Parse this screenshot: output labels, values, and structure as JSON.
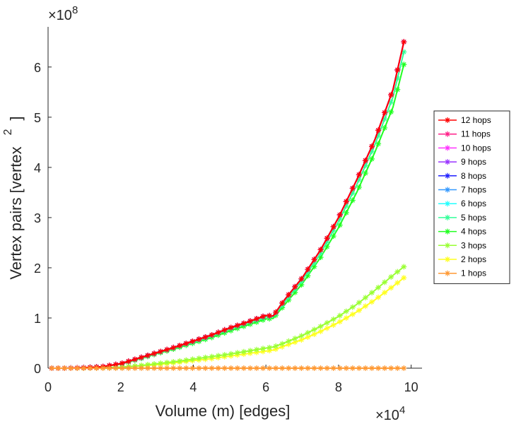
{
  "chart_data": {
    "type": "line",
    "title": "",
    "xlabel": "Volume (m) [edges]",
    "ylabel_main": "Vertex pairs [vertex",
    "ylabel_super": "2",
    "ylabel_close": "]",
    "x_exponent_label": "×10",
    "x_exponent_power": "4",
    "y_exponent_label": "×10",
    "y_exponent_power": "8",
    "xlim": [
      0,
      10.3
    ],
    "ylim": [
      0,
      6.8
    ],
    "xticks": [
      0,
      2,
      4,
      6,
      8,
      10
    ],
    "xtick_labels": [
      "0",
      "2",
      "4",
      "6",
      "8",
      "10"
    ],
    "yticks": [
      0,
      1,
      2,
      3,
      4,
      5,
      6
    ],
    "ytick_labels": [
      "0",
      "1",
      "2",
      "3",
      "4",
      "5",
      "6"
    ],
    "x_unit_scale": "10^4 edges",
    "y_unit_scale": "10^8 vertex^2",
    "grid": false,
    "legend_position": "right",
    "x": [
      0.1,
      0.5,
      1.0,
      1.5,
      2.0,
      2.5,
      3.0,
      3.5,
      4.0,
      4.5,
      5.0,
      5.5,
      6.0,
      6.2,
      6.5,
      7.0,
      7.5,
      8.0,
      8.5,
      9.0,
      9.5,
      9.8
    ],
    "series": [
      {
        "name": "12 hops",
        "color": "#ff0000",
        "values": [
          0,
          0,
          0.01,
          0.03,
          0.09,
          0.2,
          0.31,
          0.42,
          0.54,
          0.66,
          0.8,
          0.92,
          1.05,
          1.04,
          1.35,
          1.8,
          2.35,
          3.0,
          3.75,
          4.55,
          5.55,
          6.5
        ]
      },
      {
        "name": "11 hops",
        "color": "#ff1f88",
        "values": [
          0,
          0,
          0.01,
          0.03,
          0.09,
          0.2,
          0.31,
          0.42,
          0.54,
          0.66,
          0.8,
          0.92,
          1.05,
          1.04,
          1.35,
          1.8,
          2.35,
          3.0,
          3.75,
          4.55,
          5.55,
          6.5
        ]
      },
      {
        "name": "10 hops",
        "color": "#ff33ff",
        "values": [
          0,
          0,
          0.01,
          0.03,
          0.09,
          0.2,
          0.31,
          0.42,
          0.54,
          0.66,
          0.8,
          0.92,
          1.05,
          1.04,
          1.35,
          1.8,
          2.35,
          3.0,
          3.75,
          4.55,
          5.55,
          6.5
        ]
      },
      {
        "name": "9 hops",
        "color": "#9933ff",
        "values": [
          0,
          0,
          0.01,
          0.03,
          0.09,
          0.2,
          0.31,
          0.42,
          0.54,
          0.66,
          0.8,
          0.92,
          1.05,
          1.04,
          1.35,
          1.8,
          2.35,
          3.0,
          3.75,
          4.55,
          5.55,
          6.5
        ]
      },
      {
        "name": "8 hops",
        "color": "#1f1fff",
        "values": [
          0,
          0,
          0.01,
          0.03,
          0.09,
          0.2,
          0.31,
          0.42,
          0.54,
          0.66,
          0.8,
          0.92,
          1.05,
          1.04,
          1.35,
          1.8,
          2.35,
          3.0,
          3.75,
          4.55,
          5.55,
          6.5
        ]
      },
      {
        "name": "7 hops",
        "color": "#3399ff",
        "values": [
          0,
          0,
          0.01,
          0.03,
          0.09,
          0.2,
          0.31,
          0.42,
          0.54,
          0.66,
          0.8,
          0.92,
          1.05,
          1.04,
          1.35,
          1.8,
          2.35,
          3.0,
          3.75,
          4.55,
          5.55,
          6.5
        ]
      },
      {
        "name": "6 hops",
        "color": "#1fffff",
        "values": [
          0,
          0,
          0.01,
          0.03,
          0.09,
          0.2,
          0.31,
          0.42,
          0.54,
          0.66,
          0.8,
          0.92,
          1.05,
          1.04,
          1.35,
          1.8,
          2.35,
          3.0,
          3.75,
          4.55,
          5.55,
          6.5
        ]
      },
      {
        "name": "5 hops",
        "color": "#33ff99",
        "values": [
          0,
          0,
          0.01,
          0.03,
          0.09,
          0.19,
          0.3,
          0.41,
          0.52,
          0.64,
          0.78,
          0.9,
          1.02,
          1.02,
          1.3,
          1.75,
          2.28,
          2.92,
          3.65,
          4.45,
          5.4,
          6.3
        ]
      },
      {
        "name": "4 hops",
        "color": "#1fff1f",
        "values": [
          0,
          0,
          0.01,
          0.03,
          0.08,
          0.18,
          0.29,
          0.39,
          0.5,
          0.61,
          0.74,
          0.86,
          0.98,
          0.99,
          1.25,
          1.68,
          2.2,
          2.8,
          3.5,
          4.3,
          5.2,
          6.05
        ]
      },
      {
        "name": "3 hops",
        "color": "#99ff33",
        "values": [
          0,
          0,
          0,
          0.01,
          0.02,
          0.05,
          0.09,
          0.13,
          0.18,
          0.23,
          0.28,
          0.34,
          0.4,
          0.42,
          0.5,
          0.65,
          0.83,
          1.03,
          1.27,
          1.55,
          1.85,
          2.02
        ]
      },
      {
        "name": "2 hops",
        "color": "#ffff1f",
        "values": [
          0,
          0,
          0,
          0.01,
          0.02,
          0.04,
          0.07,
          0.11,
          0.15,
          0.19,
          0.24,
          0.29,
          0.34,
          0.36,
          0.44,
          0.57,
          0.73,
          0.91,
          1.12,
          1.36,
          1.63,
          1.8
        ]
      },
      {
        "name": "1 hops",
        "color": "#ff9933",
        "values": [
          0,
          0,
          0,
          0,
          0,
          0,
          0,
          0,
          0,
          0,
          0,
          0,
          0,
          0,
          0,
          0,
          0,
          0,
          0,
          0,
          0,
          0
        ]
      }
    ]
  }
}
